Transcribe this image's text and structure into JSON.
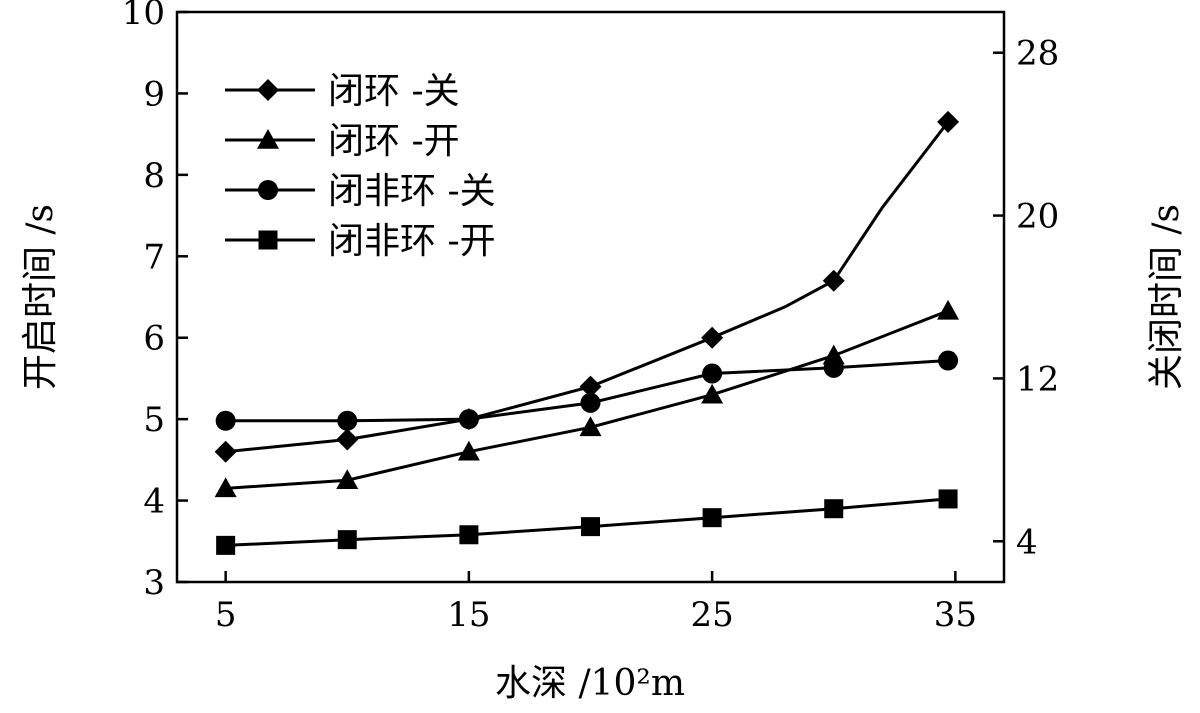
{
  "chart_data": {
    "type": "line",
    "xlabel": "水深 /10²m",
    "ylabel_left": "开启时间 /s",
    "ylabel_right": "关闭时间 /s",
    "xlim": [
      3,
      37
    ],
    "ylim_left": [
      3,
      10
    ],
    "ylim_right": [
      2,
      30
    ],
    "x_ticks": [
      5,
      15,
      25,
      35
    ],
    "y_ticks_left": [
      3,
      4,
      5,
      6,
      7,
      8,
      9,
      10
    ],
    "y_ticks_right": [
      4,
      12,
      20,
      28
    ],
    "grid": false,
    "legend_position": "top-left",
    "series": [
      {
        "name": "闭环 -关",
        "marker": "diamond",
        "axis": "left",
        "x": [
          5,
          10,
          15,
          20,
          25,
          28,
          30,
          32,
          34.7
        ],
        "y": [
          4.6,
          4.75,
          5.0,
          5.4,
          6.0,
          6.38,
          6.7,
          7.6,
          8.65
        ]
      },
      {
        "name": "闭环 -开",
        "marker": "triangle",
        "axis": "left",
        "x": [
          5,
          10,
          15,
          20,
          25,
          30,
          34.7
        ],
        "y": [
          4.15,
          4.25,
          4.6,
          4.9,
          5.3,
          5.78,
          6.33
        ]
      },
      {
        "name": "闭非环 -关",
        "marker": "circle",
        "axis": "left",
        "x": [
          5,
          10,
          15,
          20,
          25,
          30,
          34.7
        ],
        "y": [
          4.98,
          4.98,
          5.0,
          5.2,
          5.56,
          5.63,
          5.72
        ]
      },
      {
        "name": "闭非环 -开",
        "marker": "square",
        "axis": "left",
        "x": [
          5,
          10,
          15,
          20,
          25,
          30,
          34.7
        ],
        "y": [
          3.45,
          3.52,
          3.58,
          3.68,
          3.79,
          3.9,
          4.02
        ]
      }
    ]
  }
}
